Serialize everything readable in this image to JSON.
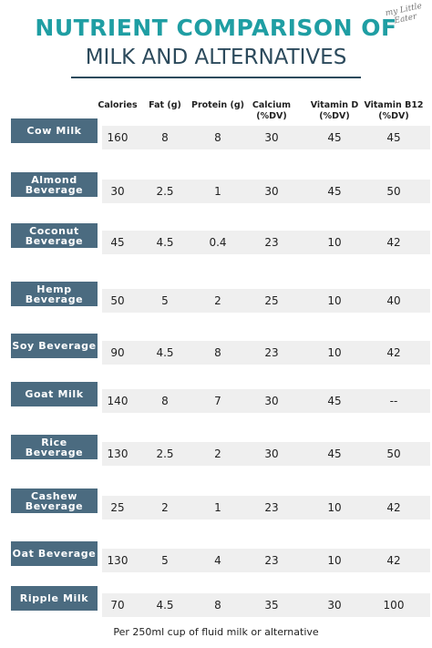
{
  "header": {
    "title": "NUTRIENT COMPARISON OF",
    "subtitle": "MILK AND ALTERNATIVES",
    "logo": "my Little Eater"
  },
  "table": {
    "columns": [
      "Calories",
      "Fat (g)",
      "Protein (g)",
      "Calcium (%DV)",
      "Vitamin D (%DV)",
      "Vitamin B12 (%DV)"
    ],
    "rows": [
      {
        "label": "Cow Milk",
        "values": [
          "160",
          "8",
          "8",
          "30",
          "45",
          "45"
        ]
      },
      {
        "label": "Almond Beverage",
        "values": [
          "30",
          "2.5",
          "1",
          "30",
          "45",
          "50"
        ]
      },
      {
        "label": "Coconut Beverage",
        "values": [
          "45",
          "4.5",
          "0.4",
          "23",
          "10",
          "42"
        ]
      },
      {
        "label": "Hemp Beverage",
        "values": [
          "50",
          "5",
          "2",
          "25",
          "10",
          "40"
        ]
      },
      {
        "label": "Soy Beverage",
        "values": [
          "90",
          "4.5",
          "8",
          "23",
          "10",
          "42"
        ]
      },
      {
        "label": "Goat Milk",
        "values": [
          "140",
          "8",
          "7",
          "30",
          "45",
          "--"
        ]
      },
      {
        "label": "Rice Beverage",
        "values": [
          "130",
          "2.5",
          "2",
          "30",
          "45",
          "50"
        ]
      },
      {
        "label": "Cashew Beverage",
        "values": [
          "25",
          "2",
          "1",
          "23",
          "10",
          "42"
        ]
      },
      {
        "label": "Oat Beverage",
        "values": [
          "130",
          "5",
          "4",
          "23",
          "10",
          "42"
        ]
      },
      {
        "label": "Ripple Milk",
        "values": [
          "70",
          "4.5",
          "8",
          "35",
          "30",
          "100"
        ]
      }
    ]
  },
  "footer": "Per 250ml  cup of fluid milk or alternative"
}
